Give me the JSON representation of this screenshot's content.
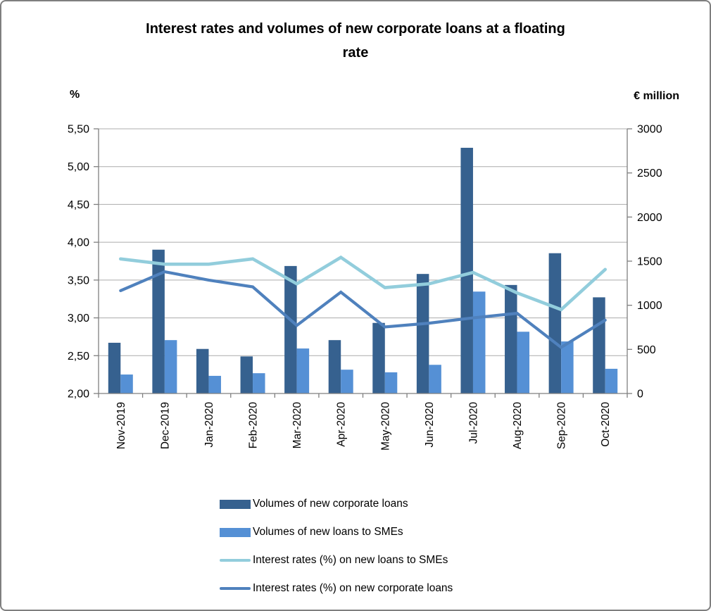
{
  "title": {
    "line1": "Interest rates and volumes of new corporate loans at a floating",
    "line2": "rate"
  },
  "chart_data": {
    "type": "combo-bar-line",
    "title": "Interest rates and volumes of new corporate loans at a floating rate",
    "categories": [
      "Nov-2019",
      "Dec-2019",
      "Jan-2020",
      "Feb-2020",
      "Mar-2020",
      "Apr-2020",
      "May-2020",
      "Jun-2020",
      "Jul-2020",
      "Aug-2020",
      "Sep-2020",
      "Oct-2020"
    ],
    "series": [
      {
        "name": "Volumes of new corporate loans",
        "type": "bar",
        "axis": "right",
        "color": "#36618F",
        "values": [
          575,
          1630,
          505,
          420,
          1445,
          605,
          800,
          1355,
          2785,
          1230,
          1590,
          1090
        ]
      },
      {
        "name": "Volumes of new loans to SMEs",
        "type": "bar",
        "axis": "right",
        "color": "#5590D5",
        "values": [
          215,
          605,
          200,
          230,
          510,
          270,
          240,
          325,
          1155,
          700,
          590,
          280
        ]
      },
      {
        "name": "Interest rates (%) on new loans to SMEs",
        "type": "line",
        "axis": "left",
        "color": "#92CDDC",
        "values": [
          3.78,
          3.71,
          3.71,
          3.78,
          3.45,
          3.8,
          3.4,
          3.45,
          3.6,
          3.33,
          3.11,
          3.64
        ]
      },
      {
        "name": "Interest rates (%) on new corporate loans",
        "type": "line",
        "axis": "left",
        "color": "#4F81BD",
        "values": [
          3.36,
          3.61,
          3.5,
          3.41,
          2.9,
          3.34,
          2.88,
          2.93,
          3.0,
          3.06,
          2.61,
          2.97
        ]
      }
    ],
    "left_axis": {
      "unit": "%",
      "min": 2.0,
      "max": 5.5,
      "ticks": [
        "5,50",
        "5,00",
        "4,50",
        "4,00",
        "3,50",
        "3,00",
        "2,50",
        "2,00"
      ]
    },
    "right_axis": {
      "unit": "€ million",
      "min": 0,
      "max": 3000,
      "ticks": [
        "3000",
        "2500",
        "2000",
        "1500",
        "1000",
        "500",
        "0"
      ]
    },
    "grid": true,
    "legend_position": "bottom-left",
    "colors": {
      "gridline": "#ACACAC",
      "axis": "#7F7F7F",
      "text": "#000000"
    }
  }
}
